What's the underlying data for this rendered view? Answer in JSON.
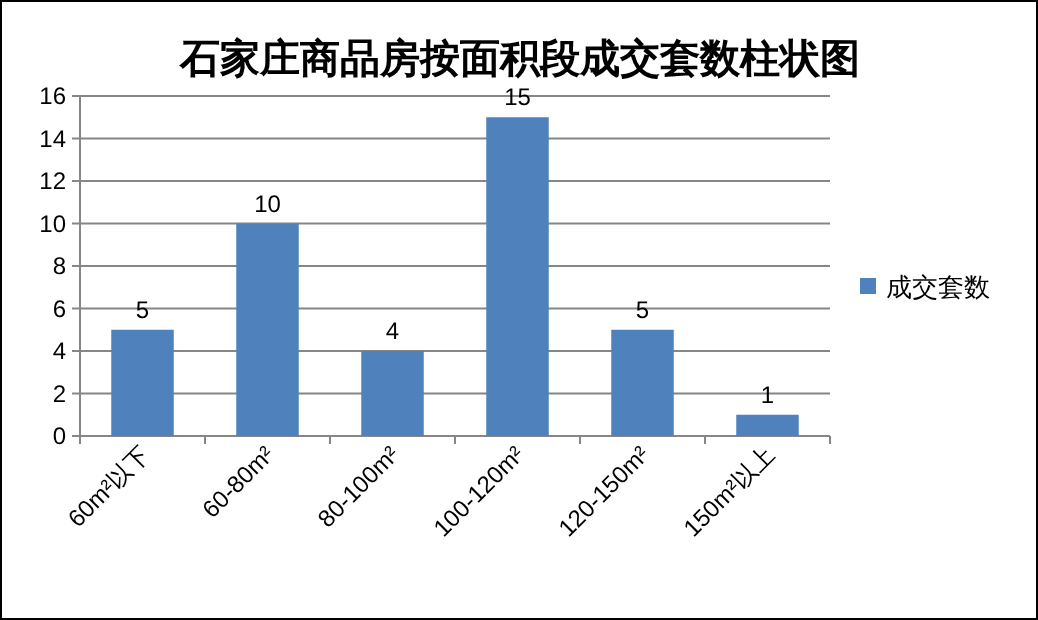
{
  "chart_data": {
    "type": "bar",
    "title": "石家庄商品房按面积段成交套数柱状图",
    "categories": [
      "60m²以下",
      "60-80m²",
      "80-100m²",
      "100-120m²",
      "120-150m²",
      "150m²以上"
    ],
    "series": [
      {
        "name": "成交套数",
        "color": "#4f81bd",
        "values": [
          5,
          10,
          4,
          15,
          5,
          1
        ]
      }
    ],
    "ylim": [
      0,
      16
    ],
    "yticks": [
      0,
      2,
      4,
      6,
      8,
      10,
      12,
      14,
      16
    ],
    "grid": "y",
    "legend": "right",
    "data_labels": true
  }
}
